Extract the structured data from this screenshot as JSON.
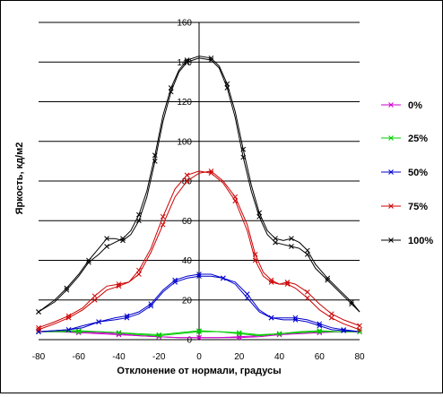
{
  "chart_data": {
    "type": "line",
    "title": "",
    "xlabel": "Отклонение от нормали, градусы",
    "ylabel": "Яркость, кд/м2",
    "xlim": [
      -80,
      80
    ],
    "ylim": [
      0,
      160
    ],
    "xticks": [
      -80,
      -60,
      -40,
      -20,
      0,
      20,
      40,
      60,
      80
    ],
    "yticks": [
      0,
      20,
      40,
      60,
      80,
      100,
      120,
      140,
      160
    ],
    "grid": "horizontal",
    "legend_position": "right",
    "series": [
      {
        "name": "0%",
        "color": "#cc00cc",
        "curves": [
          [
            [
              -80,
              4
            ],
            [
              -70,
              4
            ],
            [
              -60,
              3.5
            ],
            [
              -50,
              3
            ],
            [
              -40,
              2.5
            ],
            [
              -30,
              2
            ],
            [
              -20,
              1.5
            ],
            [
              -10,
              1
            ],
            [
              0,
              1
            ],
            [
              10,
              1
            ],
            [
              20,
              1
            ],
            [
              30,
              1.5
            ],
            [
              40,
              2.5
            ],
            [
              50,
              3
            ],
            [
              60,
              3.5
            ],
            [
              70,
              4
            ],
            [
              80,
              4
            ]
          ],
          [
            [
              -80,
              4
            ],
            [
              -70,
              4
            ],
            [
              -60,
              4
            ],
            [
              -50,
              3.5
            ],
            [
              -40,
              3
            ],
            [
              -30,
              2
            ],
            [
              -20,
              1.5
            ],
            [
              -10,
              1
            ],
            [
              0,
              1
            ],
            [
              10,
              1
            ],
            [
              20,
              1.5
            ],
            [
              30,
              2
            ],
            [
              40,
              3
            ],
            [
              50,
              3.5
            ],
            [
              60,
              4
            ],
            [
              70,
              4
            ],
            [
              80,
              4
            ]
          ]
        ]
      },
      {
        "name": "25%",
        "color": "#00cc00",
        "curves": [
          [
            [
              -80,
              4
            ],
            [
              -70,
              4
            ],
            [
              -60,
              4
            ],
            [
              -50,
              4
            ],
            [
              -40,
              3.5
            ],
            [
              -30,
              2.5
            ],
            [
              -20,
              2
            ],
            [
              -10,
              3
            ],
            [
              0,
              4
            ],
            [
              10,
              4
            ],
            [
              20,
              3.5
            ],
            [
              30,
              2.5
            ],
            [
              40,
              3
            ],
            [
              50,
              3.5
            ],
            [
              60,
              4
            ],
            [
              70,
              4
            ],
            [
              80,
              4
            ]
          ],
          [
            [
              -80,
              4
            ],
            [
              -70,
              4.5
            ],
            [
              -60,
              4.5
            ],
            [
              -50,
              4
            ],
            [
              -40,
              3.5
            ],
            [
              -30,
              3
            ],
            [
              -20,
              2.5
            ],
            [
              -10,
              3.5
            ],
            [
              0,
              4.5
            ],
            [
              10,
              4
            ],
            [
              20,
              3
            ],
            [
              30,
              2
            ],
            [
              40,
              3
            ],
            [
              50,
              4
            ],
            [
              60,
              4.5
            ],
            [
              70,
              4
            ],
            [
              80,
              4
            ]
          ]
        ]
      },
      {
        "name": "50%",
        "color": "#0000cc",
        "curves": [
          [
            [
              -80,
              4
            ],
            [
              -72,
              4.5
            ],
            [
              -65,
              5
            ],
            [
              -58,
              6
            ],
            [
              -50,
              9
            ],
            [
              -42,
              10
            ],
            [
              -36,
              11
            ],
            [
              -30,
              13
            ],
            [
              -24,
              17
            ],
            [
              -18,
              24
            ],
            [
              -12,
              29
            ],
            [
              -6,
              31
            ],
            [
              0,
              32
            ],
            [
              6,
              32
            ],
            [
              12,
              31
            ],
            [
              18,
              29
            ],
            [
              24,
              23
            ],
            [
              30,
              15
            ],
            [
              36,
              11
            ],
            [
              42,
              10
            ],
            [
              48,
              10
            ],
            [
              54,
              9
            ],
            [
              60,
              7
            ],
            [
              66,
              5
            ],
            [
              72,
              4.5
            ],
            [
              80,
              4
            ]
          ],
          [
            [
              -80,
              4
            ],
            [
              -72,
              4.5
            ],
            [
              -65,
              5
            ],
            [
              -58,
              7
            ],
            [
              -50,
              9
            ],
            [
              -42,
              11
            ],
            [
              -36,
              12
            ],
            [
              -30,
              14
            ],
            [
              -24,
              18
            ],
            [
              -18,
              25
            ],
            [
              -12,
              30
            ],
            [
              -6,
              32
            ],
            [
              0,
              33
            ],
            [
              6,
              33
            ],
            [
              12,
              31
            ],
            [
              18,
              28
            ],
            [
              24,
              21
            ],
            [
              30,
              14
            ],
            [
              36,
              11
            ],
            [
              42,
              11
            ],
            [
              48,
              11
            ],
            [
              54,
              10
            ],
            [
              60,
              8
            ],
            [
              66,
              6
            ],
            [
              72,
              5
            ],
            [
              80,
              4
            ]
          ]
        ]
      },
      {
        "name": "75%",
        "color": "#cc0000",
        "curves": [
          [
            [
              -80,
              6
            ],
            [
              -72,
              9
            ],
            [
              -65,
              12
            ],
            [
              -58,
              16
            ],
            [
              -52,
              22
            ],
            [
              -46,
              27
            ],
            [
              -40,
              28
            ],
            [
              -35,
              29
            ],
            [
              -30,
              35
            ],
            [
              -24,
              46
            ],
            [
              -18,
              62
            ],
            [
              -12,
              76
            ],
            [
              -6,
              83
            ],
            [
              0,
              85
            ],
            [
              6,
              84
            ],
            [
              12,
              79
            ],
            [
              18,
              70
            ],
            [
              24,
              55
            ],
            [
              28,
              40
            ],
            [
              32,
              32
            ],
            [
              36,
              29
            ],
            [
              40,
              28
            ],
            [
              44,
              28
            ],
            [
              48,
              26
            ],
            [
              54,
              21
            ],
            [
              60,
              15
            ],
            [
              66,
              11
            ],
            [
              72,
              8
            ],
            [
              80,
              5
            ]
          ],
          [
            [
              -80,
              5
            ],
            [
              -72,
              8
            ],
            [
              -65,
              11
            ],
            [
              -58,
              15
            ],
            [
              -52,
              20
            ],
            [
              -46,
              25
            ],
            [
              -40,
              27
            ],
            [
              -35,
              29
            ],
            [
              -30,
              33
            ],
            [
              -24,
              44
            ],
            [
              -18,
              58
            ],
            [
              -12,
              72
            ],
            [
              -6,
              80
            ],
            [
              0,
              84
            ],
            [
              6,
              85
            ],
            [
              12,
              80
            ],
            [
              18,
              72
            ],
            [
              24,
              58
            ],
            [
              28,
              43
            ],
            [
              32,
              34
            ],
            [
              36,
              30
            ],
            [
              40,
              28
            ],
            [
              44,
              29
            ],
            [
              48,
              28
            ],
            [
              54,
              24
            ],
            [
              60,
              18
            ],
            [
              66,
              13
            ],
            [
              72,
              10
            ],
            [
              80,
              7
            ]
          ]
        ]
      },
      {
        "name": "100%",
        "color": "#000000",
        "curves": [
          [
            [
              -80,
              14
            ],
            [
              -72,
              20
            ],
            [
              -66,
              26
            ],
            [
              -60,
              33
            ],
            [
              -55,
              40
            ],
            [
              -50,
              46
            ],
            [
              -46,
              51
            ],
            [
              -42,
              51
            ],
            [
              -38,
              50
            ],
            [
              -34,
              53
            ],
            [
              -30,
              60
            ],
            [
              -26,
              72
            ],
            [
              -22,
              90
            ],
            [
              -18,
              110
            ],
            [
              -14,
              125
            ],
            [
              -10,
              135
            ],
            [
              -6,
              140
            ],
            [
              0,
              142
            ],
            [
              6,
              141
            ],
            [
              10,
              137
            ],
            [
              14,
              127
            ],
            [
              18,
              112
            ],
            [
              22,
              92
            ],
            [
              26,
              75
            ],
            [
              30,
              62
            ],
            [
              34,
              53
            ],
            [
              38,
              49
            ],
            [
              42,
              48
            ],
            [
              46,
              47
            ],
            [
              50,
              46
            ],
            [
              54,
              43
            ],
            [
              58,
              36
            ],
            [
              64,
              30
            ],
            [
              70,
              24
            ],
            [
              76,
              18
            ],
            [
              80,
              14
            ]
          ],
          [
            [
              -80,
              14
            ],
            [
              -72,
              19
            ],
            [
              -66,
              25
            ],
            [
              -60,
              32
            ],
            [
              -55,
              39
            ],
            [
              -50,
              43
            ],
            [
              -46,
              47
            ],
            [
              -42,
              49
            ],
            [
              -38,
              51
            ],
            [
              -34,
              55
            ],
            [
              -30,
              63
            ],
            [
              -26,
              75
            ],
            [
              -22,
              93
            ],
            [
              -18,
              113
            ],
            [
              -14,
              127
            ],
            [
              -10,
              136
            ],
            [
              -6,
              141
            ],
            [
              0,
              143
            ],
            [
              6,
              142
            ],
            [
              10,
              138
            ],
            [
              14,
              129
            ],
            [
              18,
              115
            ],
            [
              22,
              96
            ],
            [
              26,
              78
            ],
            [
              30,
              64
            ],
            [
              34,
              55
            ],
            [
              38,
              51
            ],
            [
              42,
              50
            ],
            [
              46,
              51
            ],
            [
              50,
              49
            ],
            [
              54,
              45
            ],
            [
              58,
              38
            ],
            [
              64,
              31
            ],
            [
              70,
              25
            ],
            [
              76,
              19
            ],
            [
              80,
              14
            ]
          ]
        ]
      }
    ]
  }
}
